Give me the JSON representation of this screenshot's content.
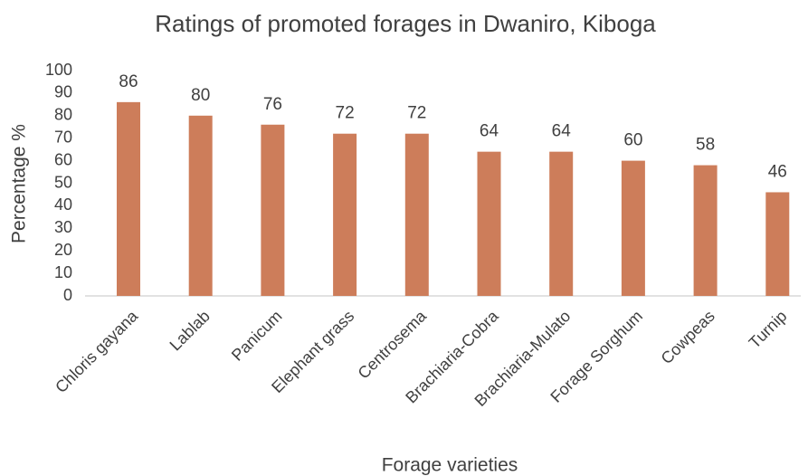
{
  "chart_data": {
    "type": "bar",
    "title": "Ratings of promoted forages in Dwaniro, Kiboga",
    "x_label": "Forage varieties",
    "y_label": "Percentage %",
    "categories": [
      "Chloris gayana",
      "Lablab",
      "Panicum",
      "Elephant grass",
      "Centrosema",
      "Brachiaria-Cobra",
      "Brachiaria-Mulato",
      "Forage Sorghum",
      "Cowpeas",
      "Turnip"
    ],
    "values": [
      86,
      80,
      76,
      72,
      72,
      64,
      64,
      60,
      58,
      46
    ],
    "color": "#cd7d5a",
    "ylim": [
      0,
      100
    ],
    "yticks": [
      0,
      10,
      20,
      30,
      40,
      50,
      60,
      70,
      80,
      90,
      100
    ],
    "grid": false
  }
}
